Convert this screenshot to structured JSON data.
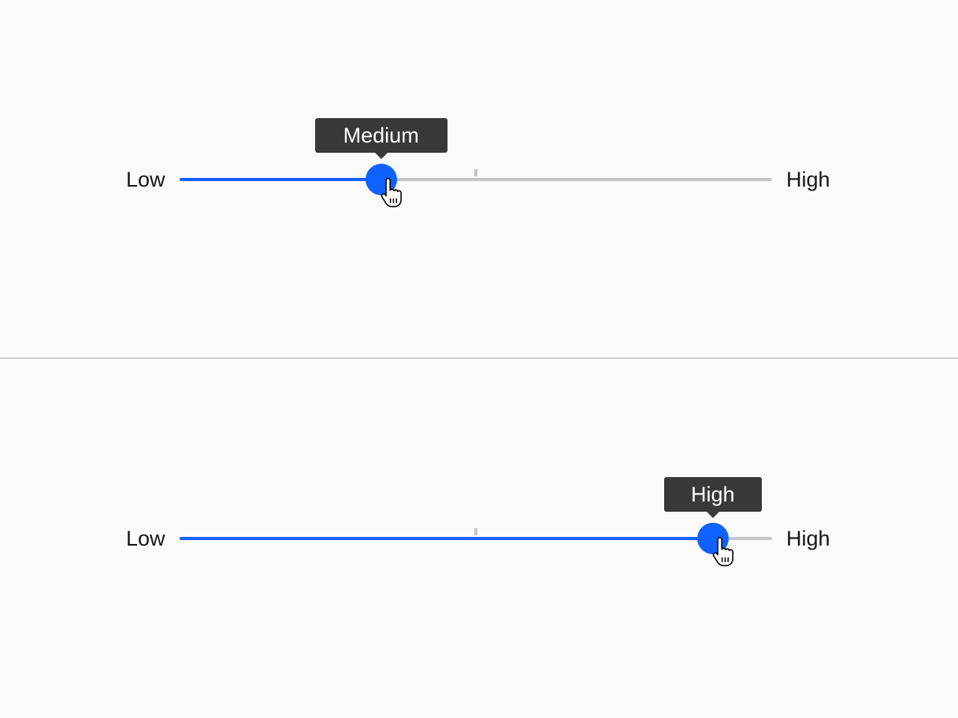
{
  "colors": {
    "accent": "#0f62fe",
    "track": "#c6c6c6",
    "tooltip_bg": "#393939",
    "tooltip_text": "#ffffff",
    "divider": "#d0d0d0"
  },
  "sliders": [
    {
      "min_label": "Low",
      "max_label": "High",
      "value_label": "Medium",
      "value_fraction": 0.34,
      "midpoint_tick_fraction": 0.5
    },
    {
      "min_label": "Low",
      "max_label": "High",
      "value_label": "High",
      "value_fraction": 0.9,
      "midpoint_tick_fraction": 0.5
    }
  ],
  "icons": {
    "cursor": "hand-pointer-icon"
  }
}
